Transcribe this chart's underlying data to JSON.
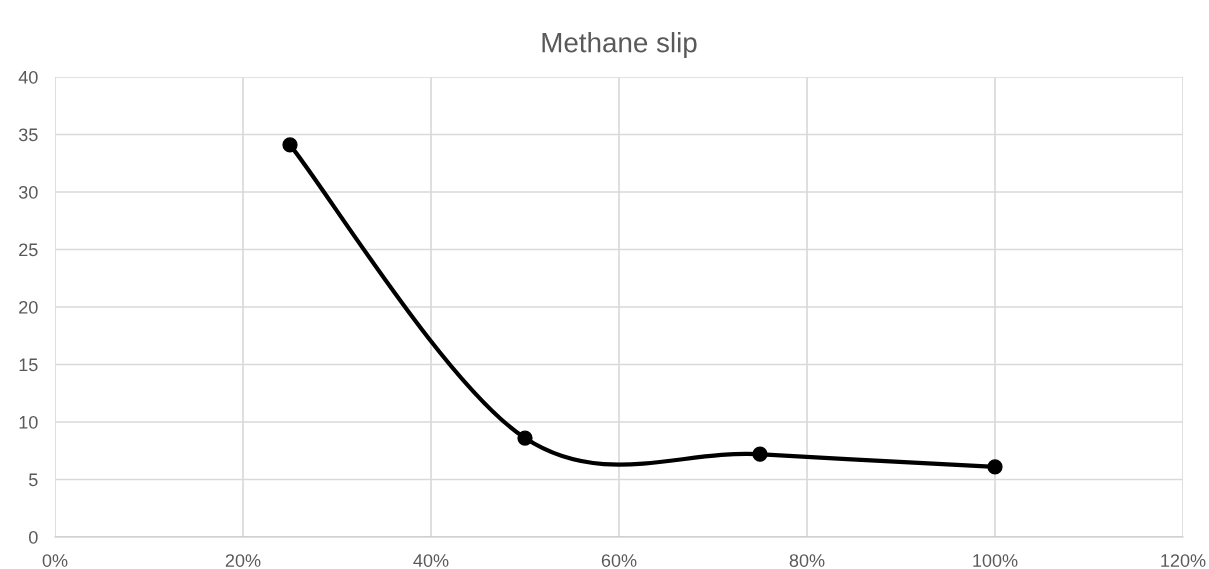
{
  "chart_data": {
    "type": "line",
    "title": "Methane slip",
    "x": [
      25,
      50,
      75,
      100
    ],
    "series": [
      {
        "color": "#000000",
        "values": [
          34.1,
          8.6,
          7.2,
          6.1
        ]
      }
    ],
    "xlim": [
      0,
      120
    ],
    "xticks": [
      {
        "value": 0,
        "label": "0%"
      },
      {
        "value": 20,
        "label": "20%"
      },
      {
        "value": 40,
        "label": "40%"
      },
      {
        "value": 60,
        "label": "60%"
      },
      {
        "value": 80,
        "label": "80%"
      },
      {
        "value": 100,
        "label": "100%"
      },
      {
        "value": 120,
        "label": "120%"
      }
    ],
    "ylim": [
      0,
      40
    ],
    "yticks": [
      0,
      5,
      10,
      15,
      20,
      25,
      30,
      35,
      40
    ],
    "grid": true,
    "marker": "circle",
    "line_style": "solid"
  }
}
